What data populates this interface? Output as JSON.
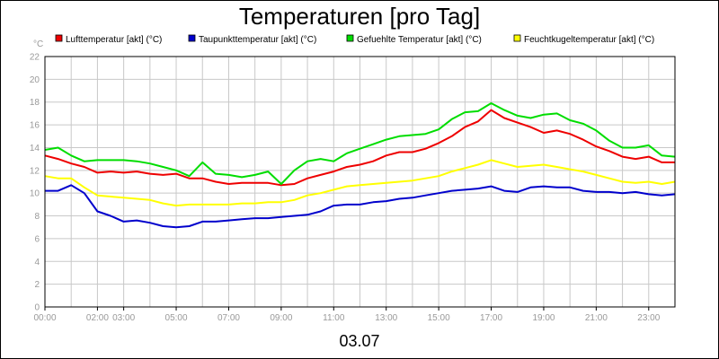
{
  "chart_data": {
    "type": "line",
    "title": "Temperaturen [pro Tag]",
    "footer_label": "03.07",
    "y_unit": "°C",
    "ylim": [
      0,
      22
    ],
    "y_ticks": [
      0,
      2,
      4,
      6,
      8,
      10,
      12,
      14,
      16,
      18,
      20,
      22
    ],
    "xlim": [
      0,
      24
    ],
    "x_ticks": [
      {
        "h": 0,
        "label": "00:00"
      },
      {
        "h": 2,
        "label": "02:00"
      },
      {
        "h": 3,
        "label": "03:00"
      },
      {
        "h": 5,
        "label": "05:00"
      },
      {
        "h": 7,
        "label": "07:00"
      },
      {
        "h": 9,
        "label": "09:00"
      },
      {
        "h": 11,
        "label": "11:00"
      },
      {
        "h": 13,
        "label": "13:00"
      },
      {
        "h": 15,
        "label": "15:00"
      },
      {
        "h": 17,
        "label": "17:00"
      },
      {
        "h": 19,
        "label": "19:00"
      },
      {
        "h": 21,
        "label": "21:00"
      },
      {
        "h": 23,
        "label": "23:00"
      }
    ],
    "grid": true,
    "legend_position": "top",
    "series": [
      {
        "name": "Lufttemperatur [akt] (°C)",
        "color": "#ee0000",
        "x": [
          0,
          0.5,
          1,
          1.5,
          2,
          2.5,
          3,
          3.5,
          4,
          4.5,
          5,
          5.5,
          6,
          6.5,
          7,
          7.5,
          8,
          8.5,
          9,
          9.5,
          10,
          10.5,
          11,
          11.5,
          12,
          12.5,
          13,
          13.5,
          14,
          14.5,
          15,
          15.5,
          16,
          16.5,
          17,
          17.5,
          18,
          18.5,
          19,
          19.5,
          20,
          20.5,
          21,
          21.5,
          22,
          22.5,
          23,
          23.5,
          24
        ],
        "y": [
          13.3,
          13.0,
          12.6,
          12.3,
          11.8,
          11.9,
          11.8,
          11.9,
          11.7,
          11.6,
          11.7,
          11.3,
          11.3,
          11.0,
          10.8,
          10.9,
          10.9,
          10.9,
          10.7,
          10.8,
          11.3,
          11.6,
          11.9,
          12.3,
          12.5,
          12.8,
          13.3,
          13.6,
          13.6,
          13.9,
          14.4,
          15.0,
          15.8,
          16.3,
          17.3,
          16.6,
          16.2,
          15.8,
          15.3,
          15.5,
          15.2,
          14.7,
          14.1,
          13.7,
          13.2,
          13.0,
          13.2,
          12.7,
          12.7
        ]
      },
      {
        "name": "Taupunkttemperatur [akt] (°C)",
        "color": "#0000cc",
        "x": [
          0,
          0.5,
          1,
          1.5,
          2,
          2.5,
          3,
          3.5,
          4,
          4.5,
          5,
          5.5,
          6,
          6.5,
          7,
          7.5,
          8,
          8.5,
          9,
          9.5,
          10,
          10.5,
          11,
          11.5,
          12,
          12.5,
          13,
          13.5,
          14,
          14.5,
          15,
          15.5,
          16,
          16.5,
          17,
          17.5,
          18,
          18.5,
          19,
          19.5,
          20,
          20.5,
          21,
          21.5,
          22,
          22.5,
          23,
          23.5,
          24
        ],
        "y": [
          10.2,
          10.2,
          10.7,
          10.0,
          8.4,
          8.0,
          7.5,
          7.6,
          7.4,
          7.1,
          7.0,
          7.1,
          7.5,
          7.5,
          7.6,
          7.7,
          7.8,
          7.8,
          7.9,
          8.0,
          8.1,
          8.4,
          8.9,
          9.0,
          9.0,
          9.2,
          9.3,
          9.5,
          9.6,
          9.8,
          10.0,
          10.2,
          10.3,
          10.4,
          10.6,
          10.2,
          10.1,
          10.5,
          10.6,
          10.5,
          10.5,
          10.2,
          10.1,
          10.1,
          10.0,
          10.1,
          9.9,
          9.8,
          9.9
        ]
      },
      {
        "name": "Gefuehlte Temperatur [akt] (°C)",
        "color": "#00dd00",
        "x": [
          0,
          0.5,
          1,
          1.5,
          2,
          2.5,
          3,
          3.5,
          4,
          4.5,
          5,
          5.5,
          6,
          6.5,
          7,
          7.5,
          8,
          8.5,
          9,
          9.5,
          10,
          10.5,
          11,
          11.5,
          12,
          12.5,
          13,
          13.5,
          14,
          14.5,
          15,
          15.5,
          16,
          16.5,
          17,
          17.5,
          18,
          18.5,
          19,
          19.5,
          20,
          20.5,
          21,
          21.5,
          22,
          22.5,
          23,
          23.5,
          24
        ],
        "y": [
          13.8,
          14.0,
          13.3,
          12.8,
          12.9,
          12.9,
          12.9,
          12.8,
          12.6,
          12.3,
          12.0,
          11.5,
          12.7,
          11.7,
          11.6,
          11.4,
          11.6,
          11.9,
          10.8,
          12.0,
          12.8,
          13.0,
          12.8,
          13.5,
          13.9,
          14.3,
          14.7,
          15.0,
          15.1,
          15.2,
          15.6,
          16.5,
          17.1,
          17.2,
          17.9,
          17.3,
          16.8,
          16.6,
          16.9,
          17.0,
          16.4,
          16.1,
          15.5,
          14.6,
          14.0,
          14.0,
          14.2,
          13.3,
          13.2
        ]
      },
      {
        "name": "Feuchtkugeltemperatur [akt] (°C)",
        "color": "#ffff00",
        "x": [
          0,
          0.5,
          1,
          1.5,
          2,
          2.5,
          3,
          3.5,
          4,
          4.5,
          5,
          5.5,
          6,
          6.5,
          7,
          7.5,
          8,
          8.5,
          9,
          9.5,
          10,
          10.5,
          11,
          11.5,
          12,
          12.5,
          13,
          13.5,
          14,
          14.5,
          15,
          15.5,
          16,
          16.5,
          17,
          17.5,
          18,
          18.5,
          19,
          19.5,
          20,
          20.5,
          21,
          21.5,
          22,
          22.5,
          23,
          23.5,
          24
        ],
        "y": [
          11.5,
          11.3,
          11.3,
          10.5,
          9.8,
          9.7,
          9.6,
          9.5,
          9.4,
          9.1,
          8.9,
          9.0,
          9.0,
          9.0,
          9.0,
          9.1,
          9.1,
          9.2,
          9.2,
          9.4,
          9.8,
          10.0,
          10.3,
          10.6,
          10.7,
          10.8,
          10.9,
          11.0,
          11.1,
          11.3,
          11.5,
          11.9,
          12.2,
          12.5,
          12.9,
          12.6,
          12.3,
          12.4,
          12.5,
          12.3,
          12.1,
          11.9,
          11.6,
          11.3,
          11.0,
          10.9,
          11.0,
          10.8,
          11.0
        ]
      }
    ]
  }
}
